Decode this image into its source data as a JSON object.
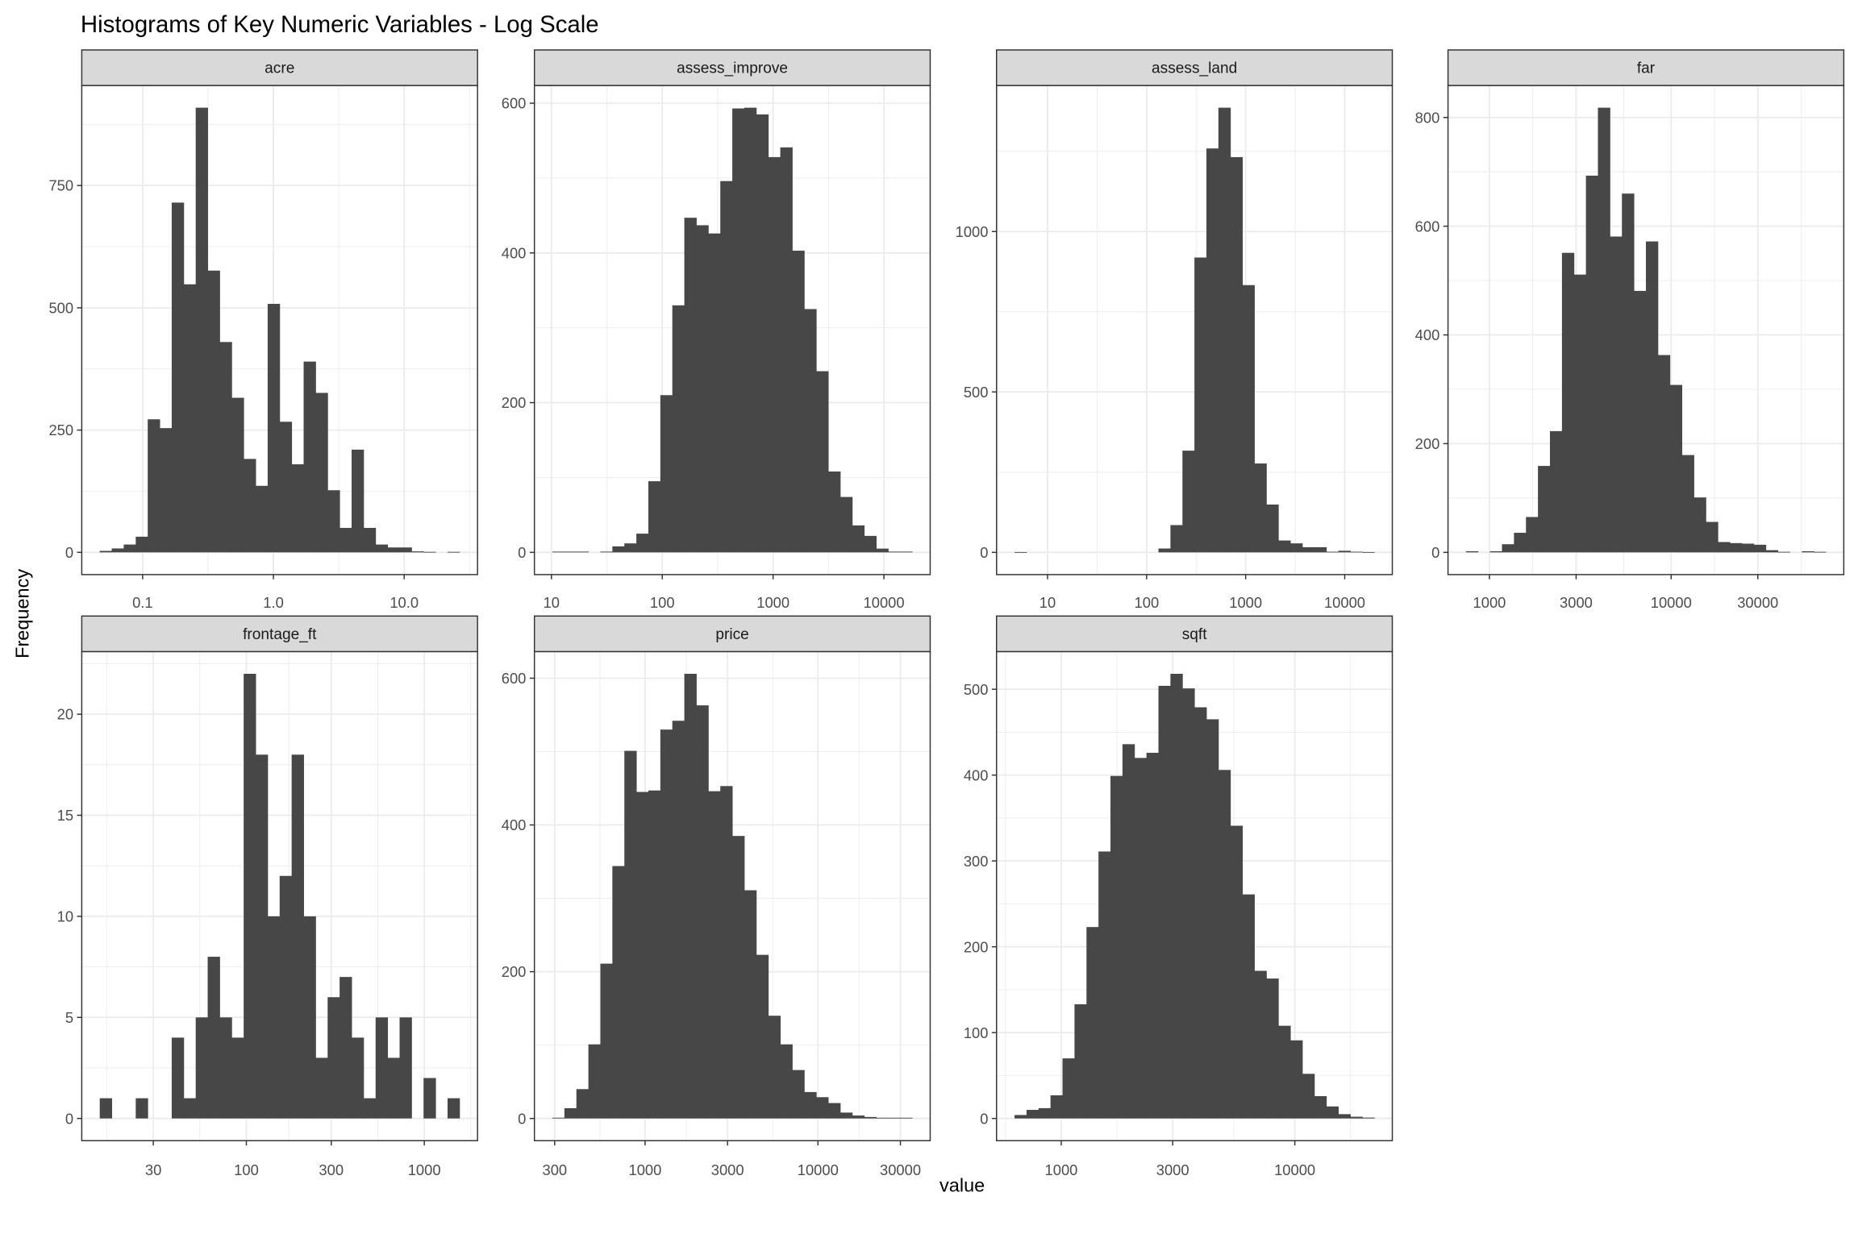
{
  "title": "Histograms of Key Numeric Variables - Log Scale",
  "xlabel": "value",
  "ylabel": "Frequency",
  "colors": {
    "bar": "#474747",
    "strip": "#d9d9d9",
    "panel_border": "#333333",
    "grid": "#ebebeb"
  },
  "chart_data": [
    {
      "type": "bar",
      "title": "acre",
      "x_scale": "log10",
      "bin_range": [
        0.047,
        26.5
      ],
      "values": [
        3,
        8,
        16,
        32,
        272,
        254,
        715,
        548,
        909,
        576,
        430,
        316,
        191,
        136,
        508,
        267,
        180,
        390,
        326,
        127,
        50,
        210,
        50,
        16,
        10,
        10,
        2,
        1,
        0,
        1
      ],
      "x_ticks": [
        {
          "value": 0.1,
          "label": "0.1"
        },
        {
          "value": 1,
          "label": "1.0"
        },
        {
          "value": 10,
          "label": "10.0"
        }
      ],
      "y_ticks": [
        {
          "value": 0,
          "label": "0"
        },
        {
          "value": 250,
          "label": "250"
        },
        {
          "value": 500,
          "label": "500"
        },
        {
          "value": 750,
          "label": "750"
        }
      ]
    },
    {
      "type": "bar",
      "title": "assess_improve",
      "x_scale": "log10",
      "bin_range": [
        10.2,
        18000
      ],
      "values": [
        1,
        1,
        1,
        0,
        1,
        8,
        12,
        25,
        95,
        210,
        330,
        447,
        437,
        426,
        496,
        593,
        594,
        585,
        528,
        541,
        403,
        325,
        242,
        108,
        74,
        36,
        22,
        5,
        1,
        1
      ],
      "x_ticks": [
        {
          "value": 10,
          "label": "10"
        },
        {
          "value": 100,
          "label": "100"
        },
        {
          "value": 1000,
          "label": "1000"
        },
        {
          "value": 10000,
          "label": "10000"
        }
      ],
      "y_ticks": [
        {
          "value": 0,
          "label": "0"
        },
        {
          "value": 200,
          "label": "200"
        },
        {
          "value": 400,
          "label": "400"
        },
        {
          "value": 600,
          "label": "600"
        }
      ]
    },
    {
      "type": "bar",
      "title": "assess_land",
      "x_scale": "log10",
      "bin_range": [
        4.64,
        19900
      ],
      "values": [
        1,
        0,
        0,
        0,
        0,
        0,
        0,
        0,
        0,
        0,
        0,
        0,
        12,
        85,
        317,
        919,
        1259,
        1386,
        1232,
        833,
        277,
        149,
        37,
        28,
        16,
        16,
        2,
        5,
        2,
        1
      ],
      "x_ticks": [
        {
          "value": 10,
          "label": "10"
        },
        {
          "value": 100,
          "label": "100"
        },
        {
          "value": 1000,
          "label": "1000"
        },
        {
          "value": 10000,
          "label": "10000"
        }
      ],
      "y_ticks": [
        {
          "value": 0,
          "label": "0"
        },
        {
          "value": 500,
          "label": "500"
        },
        {
          "value": 1000,
          "label": "1000"
        }
      ]
    },
    {
      "type": "bar",
      "title": "far",
      "x_scale": "log10",
      "bin_range": [
        743,
        71000
      ],
      "values": [
        2,
        0,
        2,
        15,
        36,
        65,
        159,
        223,
        551,
        511,
        693,
        818,
        581,
        660,
        481,
        572,
        363,
        308,
        179,
        101,
        56,
        19,
        17,
        16,
        14,
        4,
        1,
        0,
        2,
        1
      ],
      "x_ticks": [
        {
          "value": 1000,
          "label": "1000"
        },
        {
          "value": 3000,
          "label": "3000"
        },
        {
          "value": 10000,
          "label": "10000"
        },
        {
          "value": 30000,
          "label": "30000"
        }
      ],
      "y_ticks": [
        {
          "value": 0,
          "label": "0"
        },
        {
          "value": 200,
          "label": "200"
        },
        {
          "value": 400,
          "label": "400"
        },
        {
          "value": 600,
          "label": "600"
        },
        {
          "value": 800,
          "label": "800"
        }
      ]
    },
    {
      "type": "bar",
      "title": "frontage_ft",
      "x_scale": "log10",
      "bin_range": [
        15.0,
        1578
      ],
      "values": [
        1,
        0,
        0,
        1,
        0,
        0,
        4,
        1,
        5,
        8,
        5,
        4,
        22,
        18,
        10,
        12,
        18,
        10,
        3,
        6,
        7,
        4,
        1,
        5,
        3,
        5,
        0,
        2,
        0,
        1
      ],
      "x_ticks": [
        {
          "value": 30,
          "label": "30"
        },
        {
          "value": 100,
          "label": "100"
        },
        {
          "value": 300,
          "label": "300"
        },
        {
          "value": 1000,
          "label": "1000"
        }
      ],
      "y_ticks": [
        {
          "value": 0,
          "label": "0"
        },
        {
          "value": 5,
          "label": "5"
        },
        {
          "value": 10,
          "label": "10"
        },
        {
          "value": 15,
          "label": "15"
        },
        {
          "value": 20,
          "label": "20"
        }
      ]
    },
    {
      "type": "bar",
      "title": "price",
      "x_scale": "log10",
      "bin_range": [
        291,
        35100
      ],
      "values": [
        1,
        14,
        40,
        101,
        211,
        344,
        501,
        445,
        447,
        530,
        542,
        606,
        563,
        446,
        453,
        385,
        311,
        223,
        140,
        101,
        66,
        36,
        29,
        21,
        8,
        4,
        2,
        1,
        1,
        1
      ],
      "x_ticks": [
        {
          "value": 300,
          "label": "300"
        },
        {
          "value": 1000,
          "label": "1000"
        },
        {
          "value": 3000,
          "label": "3000"
        },
        {
          "value": 10000,
          "label": "10000"
        },
        {
          "value": 30000,
          "label": "30000"
        }
      ],
      "y_ticks": [
        {
          "value": 0,
          "label": "0"
        },
        {
          "value": 200,
          "label": "200"
        },
        {
          "value": 400,
          "label": "400"
        },
        {
          "value": 600,
          "label": "600"
        }
      ]
    },
    {
      "type": "bar",
      "title": "sqft",
      "x_scale": "log10",
      "bin_range": [
        631,
        21900
      ],
      "values": [
        4,
        10,
        12,
        27,
        70,
        133,
        223,
        311,
        399,
        436,
        420,
        426,
        504,
        518,
        501,
        479,
        465,
        406,
        341,
        261,
        172,
        163,
        108,
        91,
        52,
        26,
        14,
        5,
        2,
        1
      ],
      "x_ticks": [
        {
          "value": 1000,
          "label": "1000"
        },
        {
          "value": 3000,
          "label": "3000"
        },
        {
          "value": 10000,
          "label": "10000"
        }
      ],
      "y_ticks": [
        {
          "value": 0,
          "label": "0"
        },
        {
          "value": 100,
          "label": "100"
        },
        {
          "value": 200,
          "label": "200"
        },
        {
          "value": 300,
          "label": "300"
        },
        {
          "value": 400,
          "label": "400"
        },
        {
          "value": 500,
          "label": "500"
        }
      ]
    }
  ]
}
